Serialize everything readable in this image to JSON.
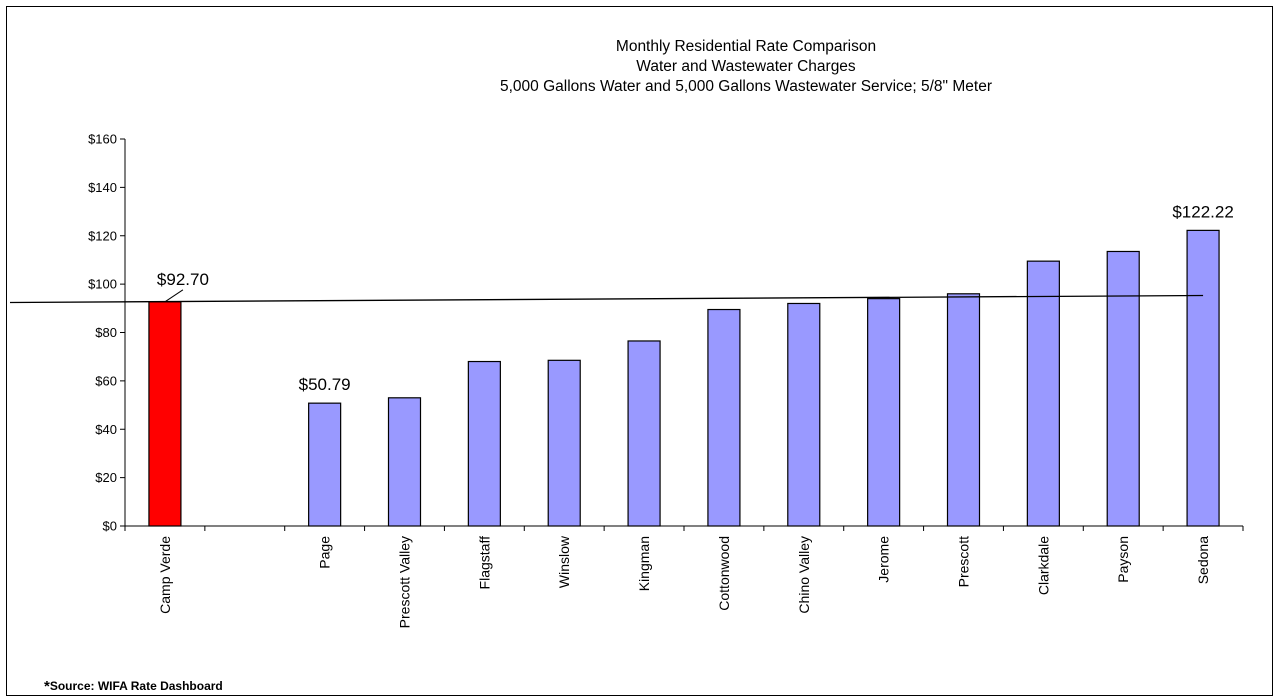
{
  "chart_data": {
    "type": "bar",
    "title": [
      "Monthly Residential Rate Comparison",
      "Water and Wastewater Charges",
      "5,000 Gallons Water and 5,000 Gallons Wastewater Service; 5/8\" Meter"
    ],
    "xlabel": "",
    "ylabel": "",
    "categories": [
      "Camp Verde",
      "",
      "Page",
      "Prescott Valley",
      "Flagstaff",
      "Winslow",
      "Kingman",
      "Cottonwood",
      "Chino Valley",
      "Jerome",
      "Prescott",
      "Clarkdale",
      "Payson",
      "Sedona"
    ],
    "values": [
      92.7,
      null,
      50.79,
      53.0,
      68.0,
      68.5,
      76.5,
      89.5,
      92.0,
      94.0,
      96.0,
      109.5,
      113.5,
      122.22
    ],
    "bar_colors": [
      "#ff0000",
      null,
      "#9999ff",
      "#9999ff",
      "#9999ff",
      "#9999ff",
      "#9999ff",
      "#9999ff",
      "#9999ff",
      "#9999ff",
      "#9999ff",
      "#9999ff",
      "#9999ff",
      "#9999ff"
    ],
    "ylim": [
      0,
      160
    ],
    "yticks": [
      0,
      20,
      40,
      60,
      80,
      100,
      120,
      140,
      160
    ],
    "ytick_labels": [
      "$0",
      "$20",
      "$40",
      "$60",
      "$80",
      "$100",
      "$120",
      "$140",
      "$160"
    ],
    "trendline": {
      "type": "linear",
      "start_value": 92.4,
      "end_value": 95.3
    },
    "annotations": [
      {
        "category_index": 0,
        "label": "$92.70"
      },
      {
        "category_index": 2,
        "label": "$50.79"
      },
      {
        "category_index": 13,
        "label": "$122.22"
      }
    ],
    "grid": false,
    "legend": "none"
  },
  "footnote": {
    "marker": "*",
    "text": "Source:  WIFA Rate Dashboard"
  }
}
